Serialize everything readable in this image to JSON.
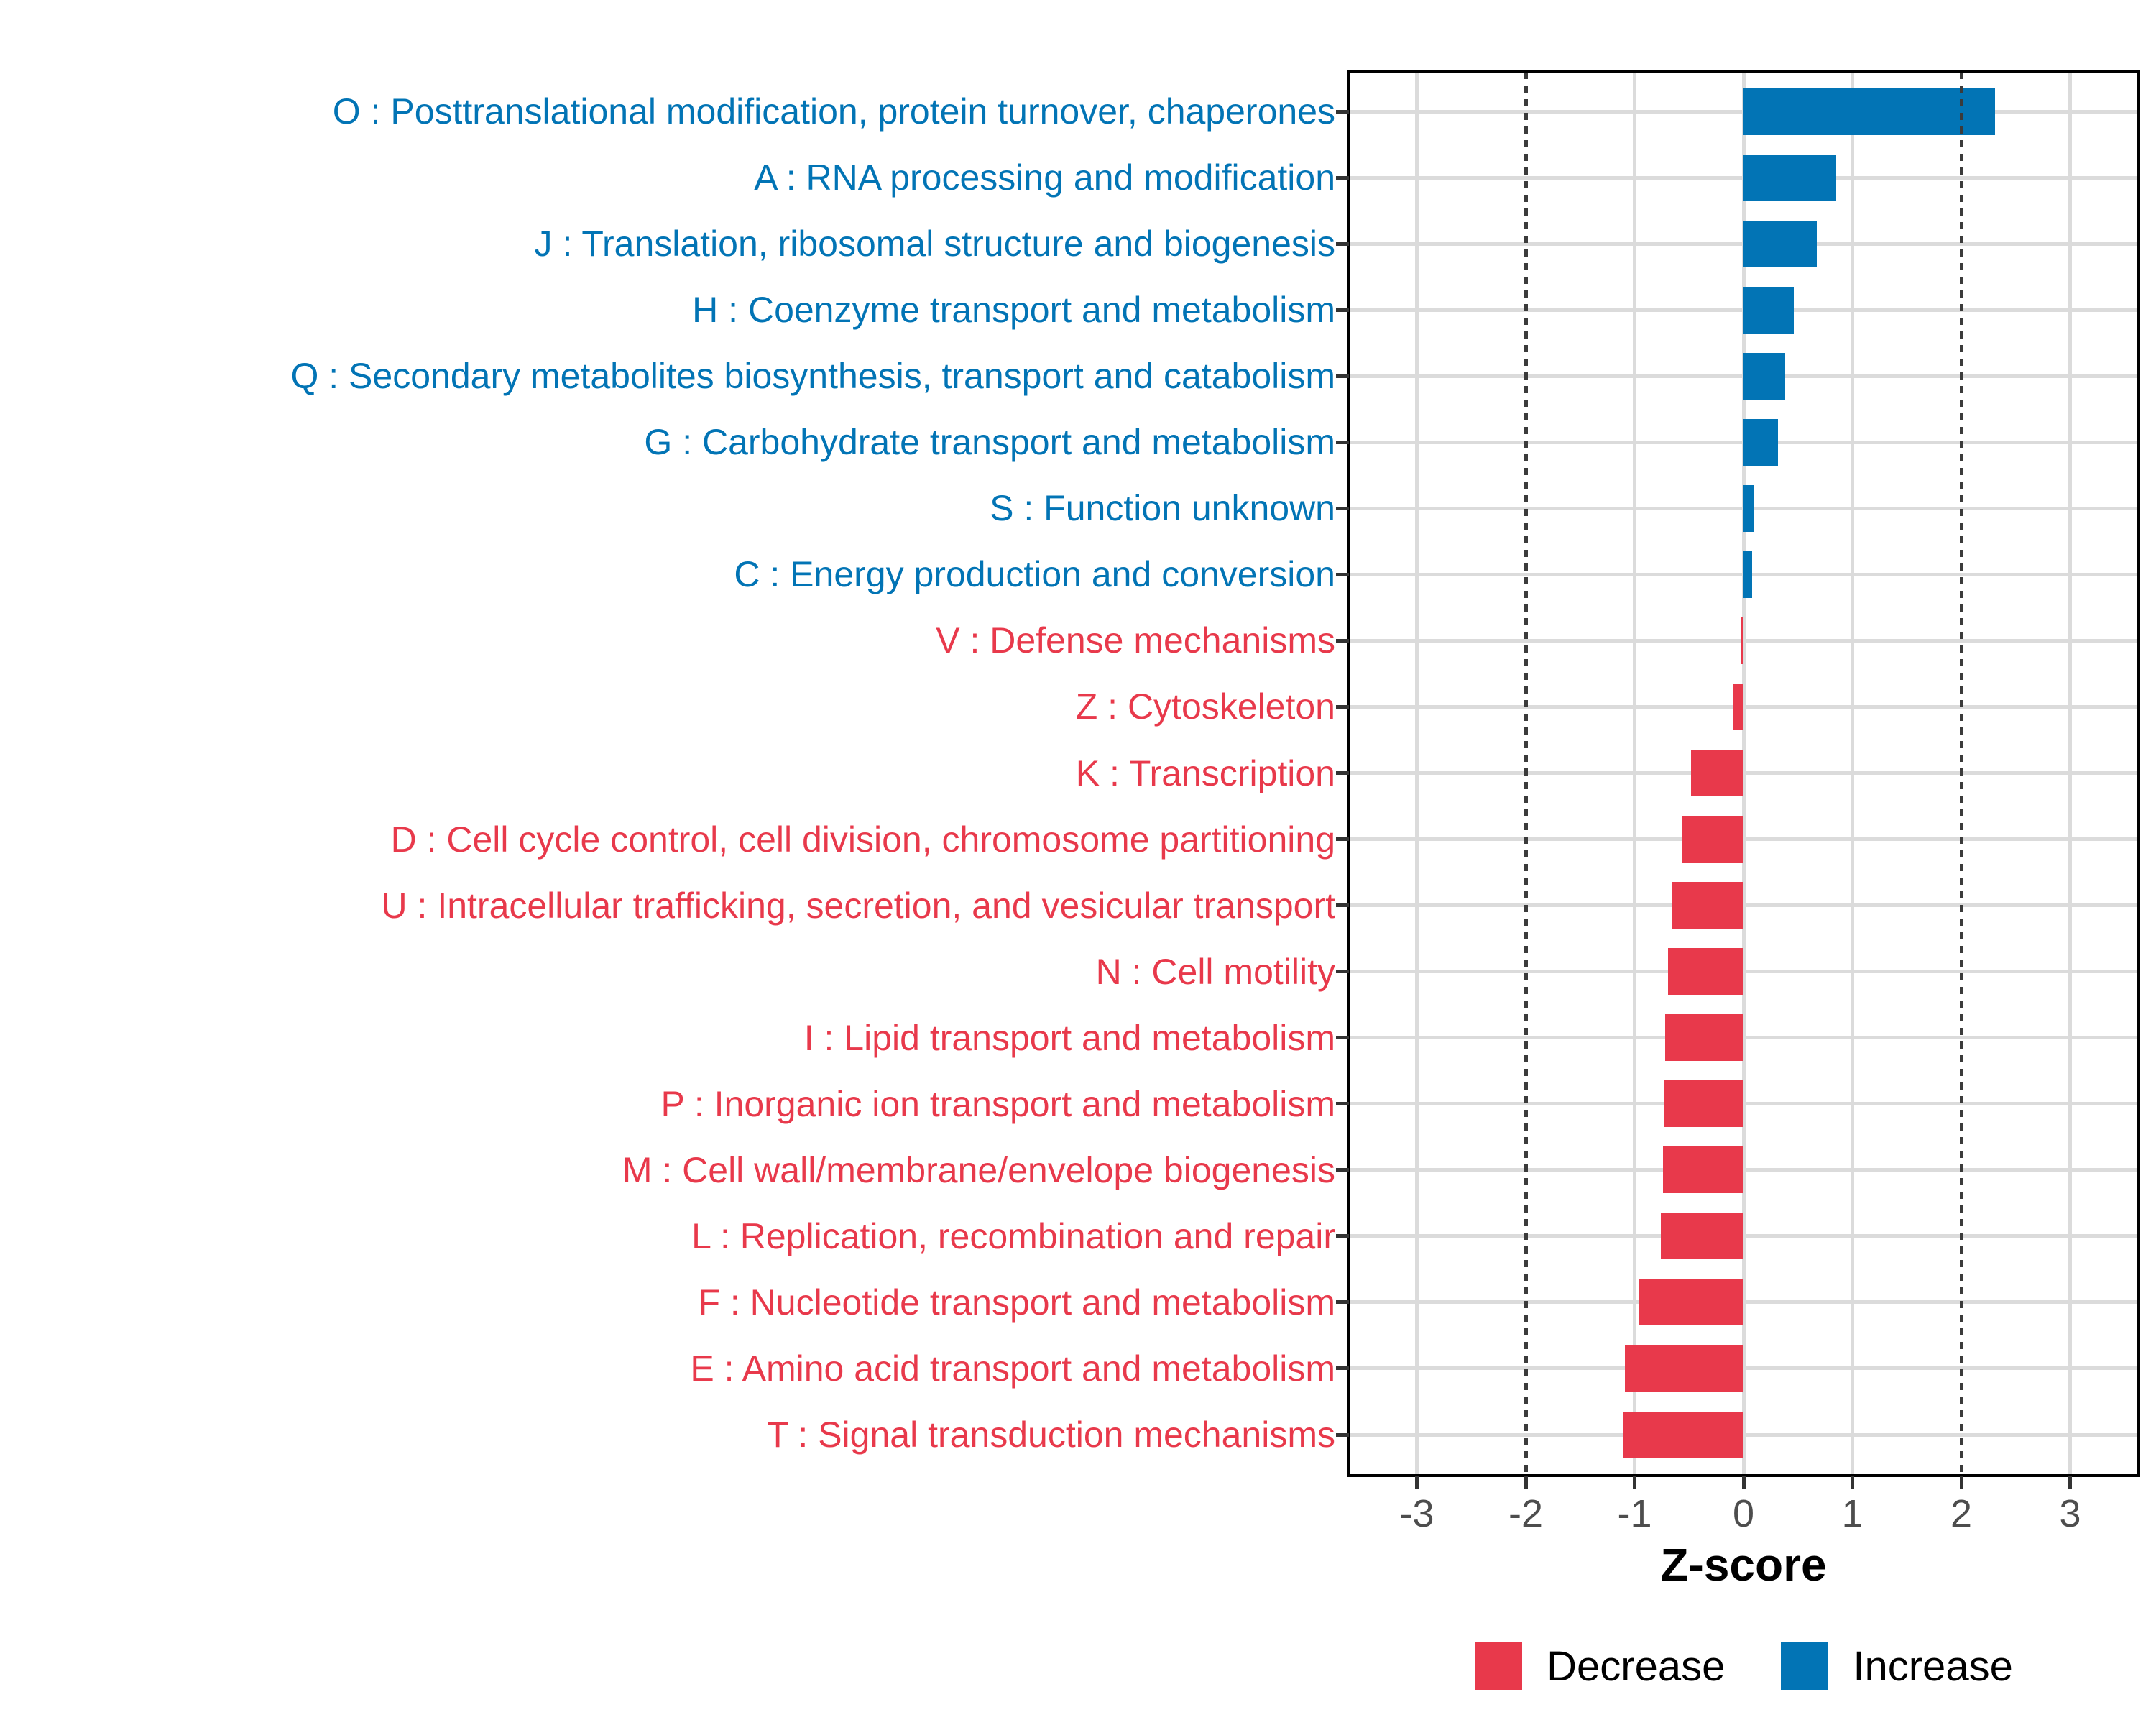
{
  "chart_data": {
    "type": "bar",
    "orientation": "horizontal",
    "title": "",
    "xlabel": "Z-score",
    "ylabel": "",
    "xlim": [
      -3.63,
      3.63
    ],
    "xticks": [
      "-3",
      "-2",
      "-1",
      "0",
      "1",
      "2",
      "3"
    ],
    "xtick_values": [
      -3,
      -2,
      -1,
      0,
      1,
      2,
      3
    ],
    "threshold_lines": [
      -2,
      2
    ],
    "grid": "major",
    "legend_position": "bottom-center",
    "colors": {
      "increase": "#0274B5",
      "decrease": "#E8394B"
    },
    "legend": [
      {
        "label": "Decrease",
        "color": "#E8394B"
      },
      {
        "label": "Increase",
        "color": "#0274B5"
      }
    ],
    "categories": [
      {
        "code": "O",
        "label": "O : Posttranslational modification, protein turnover, chaperones",
        "value": 2.31,
        "direction": "Increase"
      },
      {
        "code": "A",
        "label": "A : RNA processing and modification",
        "value": 0.85,
        "direction": "Increase"
      },
      {
        "code": "J",
        "label": "J : Translation, ribosomal structure and biogenesis",
        "value": 0.67,
        "direction": "Increase"
      },
      {
        "code": "H",
        "label": "H : Coenzyme transport and metabolism",
        "value": 0.46,
        "direction": "Increase"
      },
      {
        "code": "Q",
        "label": "Q : Secondary metabolites biosynthesis, transport and catabolism",
        "value": 0.38,
        "direction": "Increase"
      },
      {
        "code": "G",
        "label": "G : Carbohydrate transport and metabolism",
        "value": 0.32,
        "direction": "Increase"
      },
      {
        "code": "S",
        "label": "S : Function unknown",
        "value": 0.1,
        "direction": "Increase"
      },
      {
        "code": "C",
        "label": "C : Energy production and conversion",
        "value": 0.08,
        "direction": "Increase"
      },
      {
        "code": "V",
        "label": "V : Defense mechanisms",
        "value": -0.02,
        "direction": "Decrease"
      },
      {
        "code": "Z",
        "label": "Z : Cytoskeleton",
        "value": -0.1,
        "direction": "Decrease"
      },
      {
        "code": "K",
        "label": "K : Transcription",
        "value": -0.48,
        "direction": "Decrease"
      },
      {
        "code": "D",
        "label": "D : Cell cycle control, cell division, chromosome partitioning",
        "value": -0.56,
        "direction": "Decrease"
      },
      {
        "code": "U",
        "label": "U : Intracellular trafficking, secretion, and vesicular transport",
        "value": -0.66,
        "direction": "Decrease"
      },
      {
        "code": "N",
        "label": "N : Cell motility",
        "value": -0.69,
        "direction": "Decrease"
      },
      {
        "code": "I",
        "label": "I : Lipid transport and metabolism",
        "value": -0.72,
        "direction": "Decrease"
      },
      {
        "code": "P",
        "label": "P : Inorganic ion transport and metabolism",
        "value": -0.73,
        "direction": "Decrease"
      },
      {
        "code": "M",
        "label": "M : Cell wall/membrane/envelope biogenesis",
        "value": -0.74,
        "direction": "Decrease"
      },
      {
        "code": "L",
        "label": "L : Replication, recombination and repair",
        "value": -0.76,
        "direction": "Decrease"
      },
      {
        "code": "F",
        "label": "F : Nucleotide transport and metabolism",
        "value": -0.96,
        "direction": "Decrease"
      },
      {
        "code": "E",
        "label": "E : Amino acid transport and metabolism",
        "value": -1.09,
        "direction": "Decrease"
      },
      {
        "code": "T",
        "label": "T : Signal transduction mechanisms",
        "value": -1.1,
        "direction": "Decrease"
      }
    ]
  }
}
